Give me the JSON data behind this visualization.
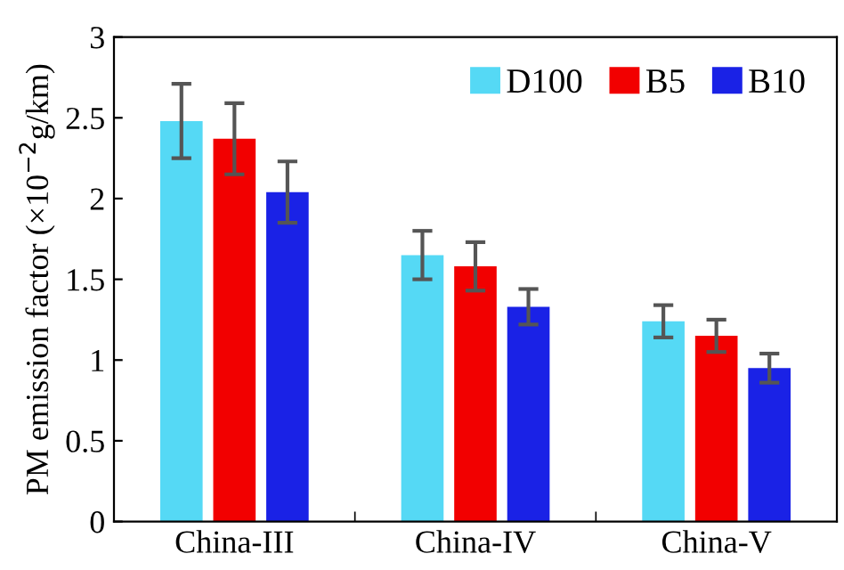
{
  "chart_data": {
    "type": "bar",
    "ylabel": "PM emission factor (×10$^{−2}$g/km)",
    "categories": [
      "China-III",
      "China-IV",
      "China-V"
    ],
    "series": [
      {
        "name": "D100",
        "color": "#55d9f5",
        "values": [
          2.48,
          1.65,
          1.24
        ],
        "errors": [
          0.23,
          0.15,
          0.1
        ]
      },
      {
        "name": "B5",
        "color": "#f20000",
        "values": [
          2.37,
          1.58,
          1.15
        ],
        "errors": [
          0.22,
          0.15,
          0.1
        ]
      },
      {
        "name": "B10",
        "color": "#1a22e6",
        "values": [
          2.04,
          1.33,
          0.95
        ],
        "errors": [
          0.19,
          0.11,
          0.09
        ]
      }
    ],
    "ylim": [
      0,
      3
    ],
    "yticks": [
      0,
      0.5,
      1,
      1.5,
      2,
      2.5,
      3
    ],
    "grid": false,
    "legend": "top right"
  }
}
